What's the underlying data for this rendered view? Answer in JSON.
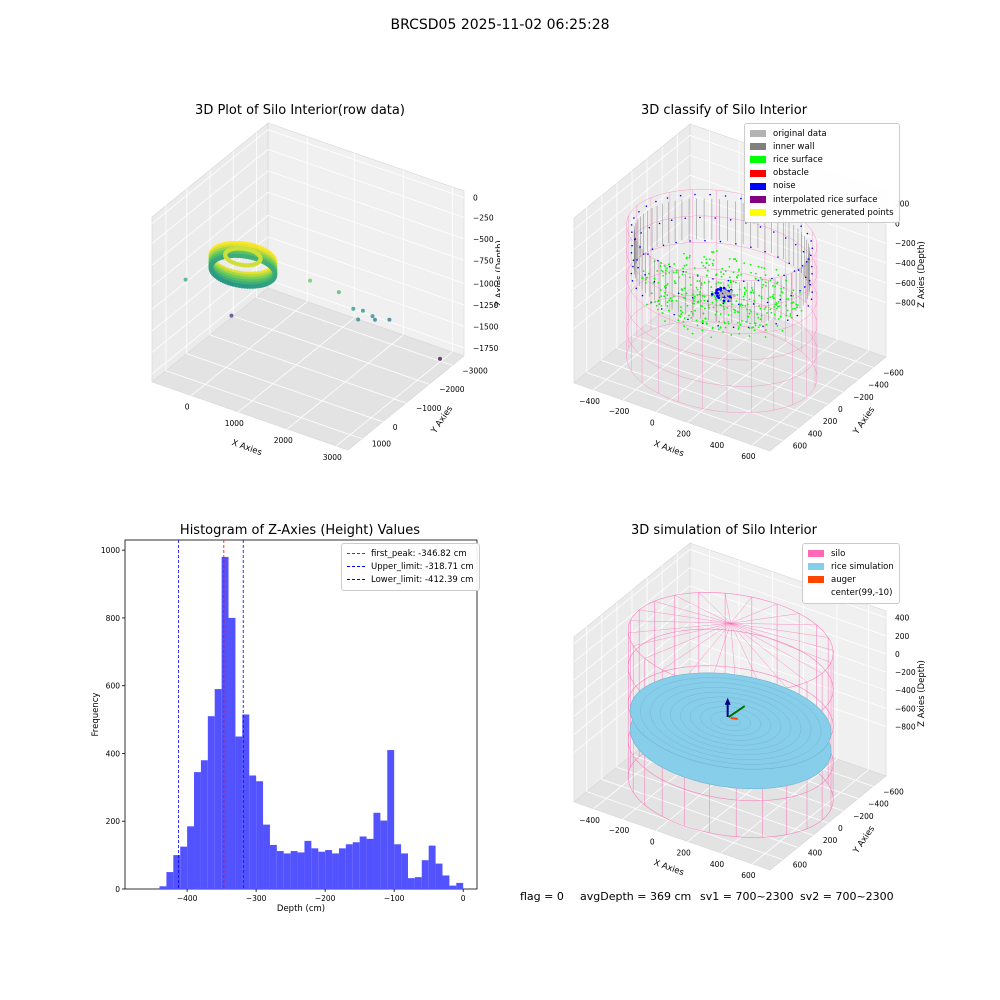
{
  "suptitle": "BRCSD05 2025-11-02 06:25:28",
  "colors": {
    "axes_fill": "#ededed",
    "grid": "#ffffff",
    "histogram": "#5252ff",
    "silo": "#ff69b4",
    "rice_simulation": "#87ceeb",
    "auger": "#ff4500",
    "original_data": "#b3b3b3",
    "inner_wall": "#808080",
    "rice_surface": "#00ff00",
    "obstacle": "#ff0000",
    "noise": "#0000ff",
    "interpolated_rice_surface": "#800080",
    "symmetric_generated_points": "#ffff00"
  },
  "chart_data": [
    {
      "type": "scatter",
      "title": "3D Plot of Silo Interior(row data)",
      "xlabel": "X Axies",
      "ylabel": "Y Axies",
      "zlabel": "Z Axies (Depth)",
      "xticks": [
        "0",
        "1000",
        "2000",
        "3000"
      ],
      "yticks": [
        "1000",
        "0",
        "−1000",
        "−2000",
        "−3000"
      ],
      "zticks": [
        "0",
        "−250",
        "−500",
        "−750",
        "−1000",
        "−1250",
        "−1500",
        "−1750"
      ],
      "xlim": [
        -500,
        3600
      ],
      "ylim": [
        -3300,
        1500
      ],
      "zlim": [
        -1850,
        100
      ],
      "colormap": "viridis",
      "scatter_points": [
        {
          "x": 2200,
          "y": 300,
          "z": -400
        },
        {
          "x": 2600,
          "y": -100,
          "z": -550
        },
        {
          "x": 2700,
          "y": -500,
          "z": -820
        },
        {
          "x": 2800,
          "y": -700,
          "z": -870
        },
        {
          "x": 2750,
          "y": -600,
          "z": -960
        },
        {
          "x": 2900,
          "y": -900,
          "z": -960
        },
        {
          "x": 2850,
          "y": -1100,
          "z": -1060
        },
        {
          "x": 3000,
          "y": -1400,
          "z": -1100
        },
        {
          "x": -100,
          "y": 900,
          "z": -700
        },
        {
          "x": 0,
          "y": -800,
          "z": -1500
        },
        {
          "x": 3300,
          "y": -2900,
          "z": -1850
        }
      ],
      "ring": {
        "center_x": 1200,
        "center_y": 1100,
        "radius": 600,
        "z_top": -150,
        "z_bottom": -300
      }
    },
    {
      "type": "scatter",
      "title": "3D classify of Silo Interior",
      "xlabel": "X Axies",
      "ylabel": "Y Axies",
      "zlabel": "Z Axies (Depth)",
      "xticks": [
        "−400",
        "−200",
        "0",
        "200",
        "400",
        "600"
      ],
      "yticks": [
        "600",
        "400",
        "200",
        "0",
        "−200",
        "−400",
        "−600"
      ],
      "zticks": [
        "200",
        "0",
        "−200",
        "−400",
        "−600",
        "−800"
      ],
      "xlim": [
        -500,
        700
      ],
      "ylim": [
        -700,
        700
      ],
      "zlim": [
        -900,
        350
      ],
      "legend": [
        {
          "label": "original data",
          "color": "#b3b3b3"
        },
        {
          "label": "inner wall",
          "color": "#808080"
        },
        {
          "label": "rice surface",
          "color": "#00ff00"
        },
        {
          "label": "obstacle",
          "color": "#ff0000"
        },
        {
          "label": "noise",
          "color": "#0000ff"
        },
        {
          "label": "interpolated rice surface",
          "color": "#800080"
        },
        {
          "label": "symmetric generated points",
          "color": "#ffff00"
        }
      ]
    },
    {
      "type": "bar",
      "title": "Histogram of Z-Axies (Height) Values",
      "xlabel": "Depth (cm)",
      "ylabel": "Frequency",
      "xlim": [
        -490,
        20
      ],
      "ylim": [
        0,
        1030
      ],
      "xticks": [
        "−400",
        "−300",
        "−200",
        "−100",
        "0"
      ],
      "yticks": [
        "0",
        "200",
        "400",
        "600",
        "800",
        "1000"
      ],
      "bin_width": 10,
      "bin_starts": [
        -440,
        -430,
        -420,
        -410,
        -400,
        -390,
        -380,
        -370,
        -360,
        -350,
        -340,
        -330,
        -320,
        -310,
        -300,
        -290,
        -280,
        -270,
        -260,
        -250,
        -240,
        -230,
        -220,
        -210,
        -200,
        -190,
        -180,
        -170,
        -160,
        -150,
        -140,
        -130,
        -120,
        -110,
        -100,
        -90,
        -80,
        -70,
        -60,
        -50,
        -40,
        -30,
        -20,
        -10,
        0
      ],
      "values": [
        8,
        50,
        100,
        125,
        185,
        345,
        380,
        510,
        590,
        980,
        800,
        450,
        515,
        335,
        318,
        190,
        130,
        112,
        105,
        112,
        108,
        142,
        120,
        110,
        115,
        105,
        120,
        132,
        138,
        155,
        148,
        225,
        202,
        410,
        132,
        105,
        32,
        35,
        85,
        128,
        75,
        40,
        10,
        18,
        0
      ],
      "vlines": [
        {
          "label": "first_peak: -346.82 cm",
          "x": -346.82,
          "color": "#ff0000"
        },
        {
          "label": "Upper_limit: -318.71 cm",
          "x": -318.71,
          "color": "#0000ff"
        },
        {
          "label": "Lower_limit: -412.39 cm",
          "x": -412.39,
          "color": "#0000ff"
        }
      ]
    },
    {
      "type": "scatter",
      "title": "3D simulation of Silo Interior",
      "xlabel": "X Axies",
      "ylabel": "Y Axies",
      "zlabel": "Z Axies (Depth)",
      "xticks": [
        "−400",
        "−200",
        "0",
        "200",
        "400",
        "600"
      ],
      "yticks": [
        "600",
        "400",
        "200",
        "0",
        "−200",
        "−400",
        "−600"
      ],
      "zticks": [
        "400",
        "200",
        "0",
        "−200",
        "−400",
        "−600",
        "−800"
      ],
      "xlim": [
        -500,
        700
      ],
      "ylim": [
        -700,
        700
      ],
      "zlim": [
        -900,
        450
      ],
      "legend": [
        {
          "label": "silo",
          "color": "#ff69b4"
        },
        {
          "label": "rice simulation",
          "color": "#87ceeb"
        },
        {
          "label": "auger",
          "color": "#ff4500"
        },
        {
          "label": "center(99,-10)",
          "color": "#ffffff"
        }
      ]
    }
  ],
  "footer": {
    "flag": "flag = 0",
    "avg_depth": "avgDepth = 369 cm",
    "sv1": "sv1 = 700~2300",
    "sv2": "sv2 = 700~2300"
  }
}
